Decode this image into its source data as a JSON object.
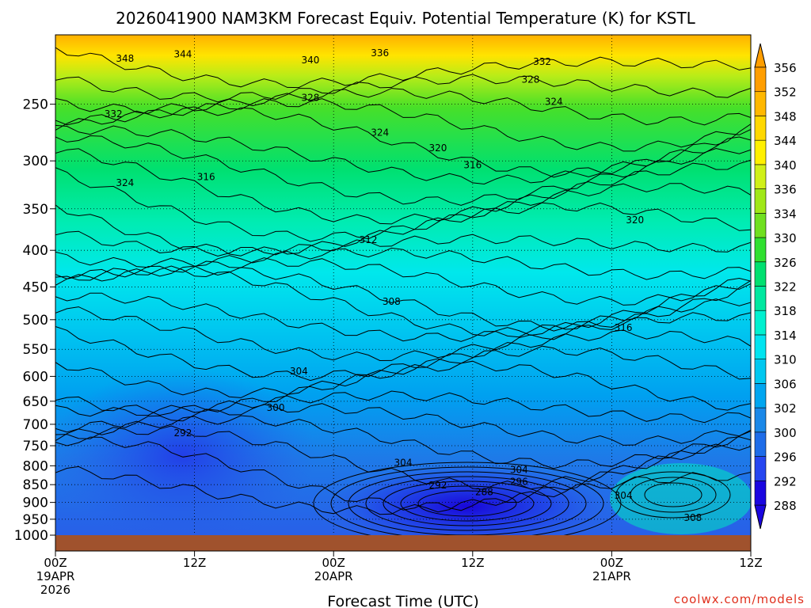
{
  "chart_data": {
    "type": "heatmap",
    "title": "2026041900 NAM3KM Forecast Equiv. Potential Temperature (K) for KSTL",
    "xlabel": "Forecast Time (UTC)",
    "ylabel": "",
    "credit": "coolwx.com/models",
    "xlim": [
      0,
      60
    ],
    "ylim": [
      1000,
      200
    ],
    "yscale": "log",
    "x_ticks": [
      {
        "hour": 0,
        "lines": [
          "00Z",
          "19APR",
          "2026"
        ]
      },
      {
        "hour": 12,
        "lines": [
          "12Z"
        ]
      },
      {
        "hour": 24,
        "lines": [
          "00Z",
          "20APR"
        ]
      },
      {
        "hour": 36,
        "lines": [
          "12Z"
        ]
      },
      {
        "hour": 48,
        "lines": [
          "00Z",
          "21APR"
        ]
      },
      {
        "hour": 60,
        "lines": [
          "12Z"
        ]
      }
    ],
    "y_ticks": [
      250,
      300,
      350,
      400,
      450,
      500,
      550,
      600,
      650,
      700,
      750,
      800,
      850,
      900,
      950,
      1000
    ],
    "colorbar_levels": [
      288,
      292,
      296,
      300,
      302,
      306,
      310,
      314,
      318,
      322,
      326,
      330,
      334,
      336,
      340,
      344,
      348,
      352,
      356
    ],
    "colorbar_colors": [
      "#1a06e0",
      "#2646f0",
      "#1e6ce8",
      "#1a88e8",
      "#00a6f0",
      "#00c8f0",
      "#00e4f0",
      "#00f0d0",
      "#00e8a0",
      "#00e070",
      "#30e030",
      "#70e020",
      "#a0e818",
      "#d0f018",
      "#fff000",
      "#ffd800",
      "#ffb800",
      "#ff9e00"
    ],
    "grid": true,
    "terrain_color": "#a0522d",
    "contours": [
      {
        "label": "348",
        "x": 6,
        "p": 216
      },
      {
        "label": "344",
        "x": 11,
        "p": 213
      },
      {
        "label": "340",
        "x": 22,
        "p": 217
      },
      {
        "label": "336",
        "x": 28,
        "p": 212
      },
      {
        "label": "332",
        "x": 42,
        "p": 218
      },
      {
        "label": "328",
        "x": 41,
        "p": 231
      },
      {
        "label": "324",
        "x": 43,
        "p": 248
      },
      {
        "label": "332",
        "x": 5,
        "p": 258
      },
      {
        "label": "328",
        "x": 22,
        "p": 245
      },
      {
        "label": "324",
        "x": 28,
        "p": 274
      },
      {
        "label": "320",
        "x": 33,
        "p": 288
      },
      {
        "label": "316",
        "x": 36,
        "p": 304
      },
      {
        "label": "324",
        "x": 6,
        "p": 322
      },
      {
        "label": "316",
        "x": 13,
        "p": 316
      },
      {
        "label": "312",
        "x": 27,
        "p": 387
      },
      {
        "label": "320",
        "x": 50,
        "p": 363
      },
      {
        "label": "308",
        "x": 29,
        "p": 472
      },
      {
        "label": "316",
        "x": 49,
        "p": 513
      },
      {
        "label": "304",
        "x": 21,
        "p": 590
      },
      {
        "label": "300",
        "x": 19,
        "p": 664
      },
      {
        "label": "292",
        "x": 11,
        "p": 720
      },
      {
        "label": "304",
        "x": 30,
        "p": 792
      },
      {
        "label": "304",
        "x": 40,
        "p": 810
      },
      {
        "label": "296",
        "x": 40,
        "p": 842
      },
      {
        "label": "292",
        "x": 33,
        "p": 852
      },
      {
        "label": "288",
        "x": 37,
        "p": 870
      },
      {
        "label": "304",
        "x": 49,
        "p": 880
      },
      {
        "label": "308",
        "x": 55,
        "p": 945
      }
    ]
  }
}
